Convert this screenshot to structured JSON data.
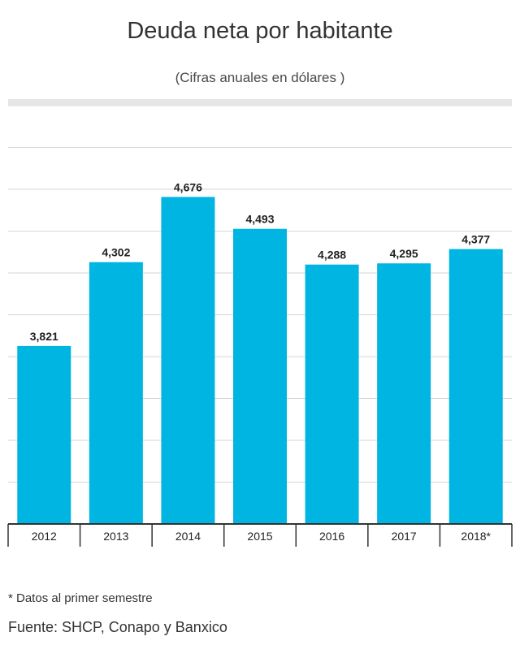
{
  "header": {
    "title": "Deuda neta por habitante",
    "subtitle": "(Cifras anuales en dólares )"
  },
  "chart_data": {
    "type": "bar",
    "title": "Deuda neta por habitante",
    "subtitle": "(Cifras anuales en dólares )",
    "categories": [
      "2012",
      "2013",
      "2014",
      "2015",
      "2016",
      "2017",
      "2018*"
    ],
    "values": [
      3821,
      4302,
      4676,
      4493,
      4288,
      4295,
      4377
    ],
    "value_labels": [
      "3,821",
      "4,302",
      "4,676",
      "4,493",
      "4,288",
      "4,295",
      "4,377"
    ],
    "ylim": [
      2800,
      5200
    ],
    "grid": true,
    "bar_color": "#00b5e2",
    "xlabel": "",
    "ylabel": ""
  },
  "footer": {
    "note": "* Datos al primer semestre",
    "source": "Fuente: SHCP, Conapo y Banxico"
  }
}
